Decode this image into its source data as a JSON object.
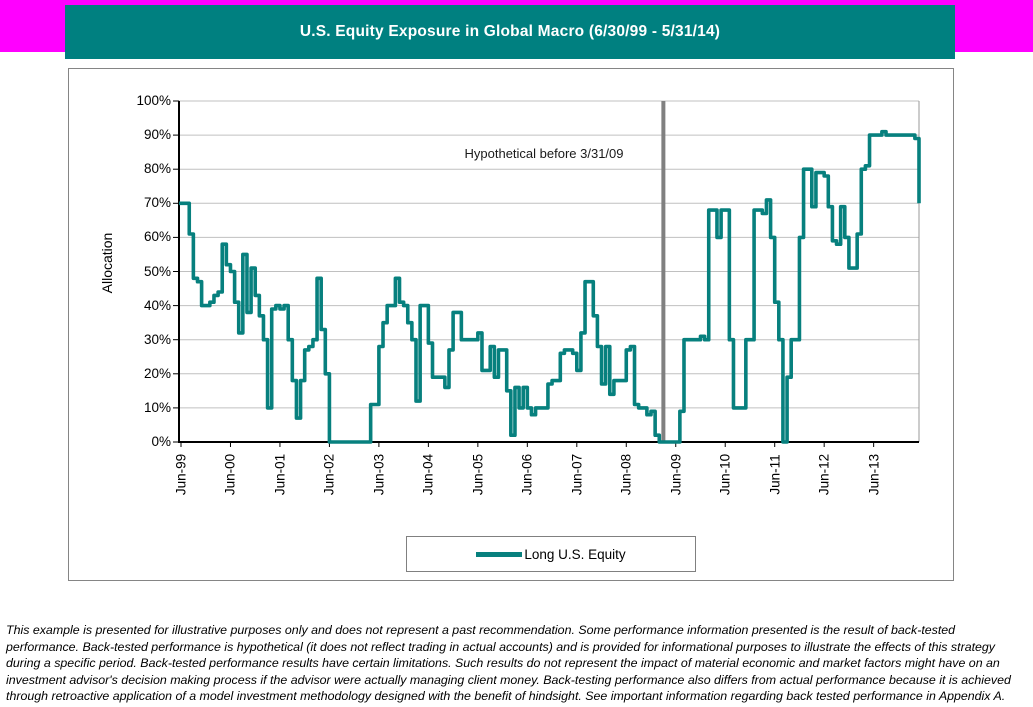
{
  "banner": {
    "title": "U.S. Equity Exposure in Global Macro (6/30/99 - 5/31/14)",
    "strip_color": "#FF00FF",
    "bar_color": "#008080"
  },
  "chart_data": {
    "type": "line",
    "title": "U.S. Equity Exposure in Global Macro (6/30/99 - 5/31/14)",
    "xlabel": "",
    "ylabel": "Allocation",
    "ylim": [
      0,
      100
    ],
    "ytick_labels": [
      "0%",
      "10%",
      "20%",
      "30%",
      "40%",
      "50%",
      "60%",
      "70%",
      "80%",
      "90%",
      "100%"
    ],
    "xtick_labels": [
      "Jun-99",
      "Jun-00",
      "Jun-01",
      "Jun-02",
      "Jun-03",
      "Jun-04",
      "Jun-05",
      "Jun-06",
      "Jun-07",
      "Jun-08",
      "Jun-09",
      "Jun-10",
      "Jun-11",
      "Jun-12",
      "Jun-13"
    ],
    "x_start": "Jun-1999",
    "x_end": "May-2014",
    "x_frequency": "monthly",
    "grid": "horizontal",
    "grid_color": "#c0c0c0",
    "legend_position": "bottom",
    "annotation": {
      "text": "Hypothetical before 3/31/09"
    },
    "divider": {
      "date": "3/31/09",
      "color": "#808080",
      "month_index": 117
    },
    "series": [
      {
        "name": "Long U.S. Equity",
        "color": "#07807E",
        "values": [
          70,
          70,
          61,
          48,
          47,
          40,
          40,
          41,
          43,
          44,
          58,
          52,
          50,
          41,
          32,
          55,
          38,
          51,
          43,
          37,
          30,
          10,
          39,
          40,
          39,
          40,
          30,
          18,
          7,
          18,
          27,
          28,
          30,
          48,
          33,
          20,
          0,
          0,
          0,
          0,
          0,
          0,
          0,
          0,
          0,
          0,
          11,
          11,
          28,
          35,
          40,
          40,
          48,
          41,
          40,
          35,
          30,
          12,
          40,
          40,
          29,
          19,
          19,
          19,
          16,
          27,
          38,
          38,
          30,
          30,
          30,
          30,
          32,
          21,
          21,
          28,
          19,
          27,
          27,
          15,
          2,
          16,
          10,
          16,
          10,
          8,
          10,
          10,
          10,
          17,
          18,
          18,
          26,
          27,
          27,
          26,
          21,
          32,
          47,
          47,
          37,
          28,
          17,
          28,
          14,
          18,
          18,
          18,
          27,
          28,
          11,
          10,
          10,
          8,
          9,
          2,
          0,
          0,
          0,
          0,
          0,
          9,
          30,
          30,
          30,
          30,
          31,
          30,
          68,
          68,
          60,
          68,
          68,
          30,
          10,
          10,
          10,
          30,
          30,
          68,
          68,
          67,
          71,
          60,
          41,
          30,
          0,
          19,
          30,
          30,
          60,
          80,
          80,
          69,
          79,
          79,
          78,
          69,
          59,
          58,
          69,
          60,
          51,
          51,
          61,
          80,
          81,
          90,
          90,
          90,
          91,
          90,
          90,
          90,
          90,
          90,
          90,
          90,
          89,
          70
        ]
      }
    ]
  },
  "footer": {
    "disclaimer": "This example is presented for illustrative purposes only and does not represent a past recommendation. Some performance information presented is the result of back-tested performance. Back-tested performance is hypothetical (it does not reflect trading in actual accounts) and is provided for informational purposes to illustrate the effects of this strategy during a specific period.  Back-tested performance results have certain limitations.  Such results do not represent the impact of material economic and market factors might have on an investment advisor's decision making process if the advisor were actually managing client money.  Back-testing performance also differs from actual performance because it is achieved through retroactive application of a model investment methodology designed with the benefit of hindsight.  See important information regarding back tested performance in Appendix A."
  }
}
